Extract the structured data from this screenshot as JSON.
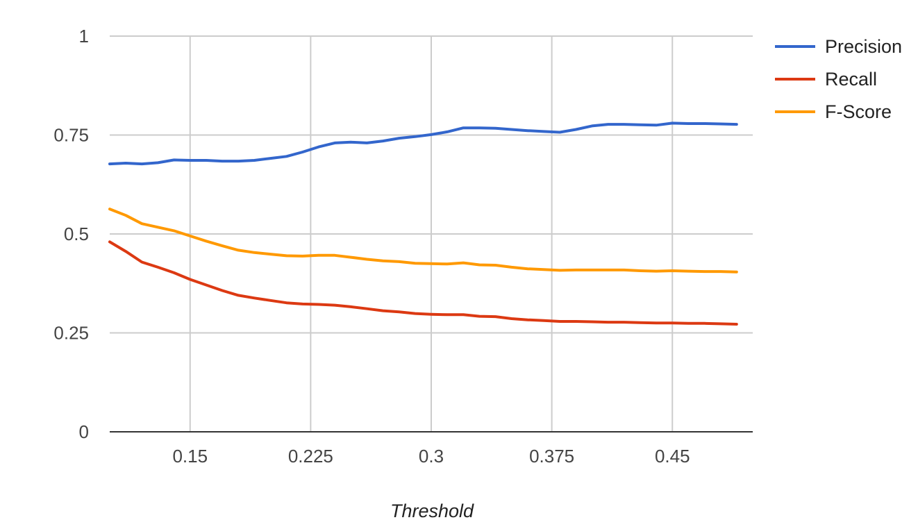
{
  "chart_data": {
    "type": "line",
    "xlabel": "Threshold",
    "ylabel": "",
    "title": "",
    "xlim": [
      0.1,
      0.5
    ],
    "ylim": [
      0,
      1
    ],
    "x_ticks": [
      0.15,
      0.225,
      0.3,
      0.375,
      0.45
    ],
    "x_tick_labels": [
      "0.15",
      "0.225",
      "0.3",
      "0.375",
      "0.45"
    ],
    "y_ticks": [
      0,
      0.25,
      0.5,
      0.75,
      1
    ],
    "y_tick_labels": [
      "0",
      "0.25",
      "0.5",
      "0.75",
      "1"
    ],
    "grid": true,
    "legend_position": "right",
    "x": [
      0.1,
      0.11,
      0.12,
      0.13,
      0.14,
      0.15,
      0.16,
      0.17,
      0.18,
      0.19,
      0.2,
      0.21,
      0.22,
      0.23,
      0.24,
      0.25,
      0.26,
      0.27,
      0.28,
      0.29,
      0.3,
      0.31,
      0.32,
      0.33,
      0.34,
      0.35,
      0.36,
      0.37,
      0.38,
      0.39,
      0.4,
      0.41,
      0.42,
      0.43,
      0.44,
      0.45,
      0.46,
      0.47,
      0.48,
      0.49
    ],
    "series": [
      {
        "name": "Precision",
        "color": "#3366cc",
        "values": [
          0.677,
          0.679,
          0.677,
          0.68,
          0.687,
          0.686,
          0.686,
          0.684,
          0.684,
          0.686,
          0.691,
          0.696,
          0.707,
          0.72,
          0.73,
          0.732,
          0.73,
          0.735,
          0.742,
          0.746,
          0.751,
          0.758,
          0.768,
          0.768,
          0.767,
          0.764,
          0.761,
          0.759,
          0.757,
          0.764,
          0.773,
          0.777,
          0.777,
          0.776,
          0.775,
          0.78,
          0.779,
          0.779,
          0.778,
          0.777
        ]
      },
      {
        "name": "Recall",
        "color": "#dc3912",
        "values": [
          0.48,
          0.456,
          0.429,
          0.416,
          0.402,
          0.385,
          0.371,
          0.357,
          0.345,
          0.338,
          0.332,
          0.326,
          0.323,
          0.322,
          0.32,
          0.316,
          0.311,
          0.306,
          0.303,
          0.299,
          0.297,
          0.296,
          0.296,
          0.292,
          0.291,
          0.286,
          0.283,
          0.281,
          0.279,
          0.279,
          0.278,
          0.277,
          0.277,
          0.276,
          0.275,
          0.275,
          0.274,
          0.274,
          0.273,
          0.272
        ]
      },
      {
        "name": "F-Score",
        "color": "#ff9900",
        "values": [
          0.563,
          0.547,
          0.526,
          0.517,
          0.508,
          0.495,
          0.482,
          0.47,
          0.459,
          0.453,
          0.449,
          0.445,
          0.444,
          0.446,
          0.446,
          0.441,
          0.436,
          0.432,
          0.43,
          0.426,
          0.425,
          0.424,
          0.427,
          0.422,
          0.421,
          0.416,
          0.412,
          0.41,
          0.408,
          0.409,
          0.409,
          0.409,
          0.409,
          0.407,
          0.406,
          0.407,
          0.406,
          0.405,
          0.405,
          0.404
        ]
      }
    ]
  }
}
